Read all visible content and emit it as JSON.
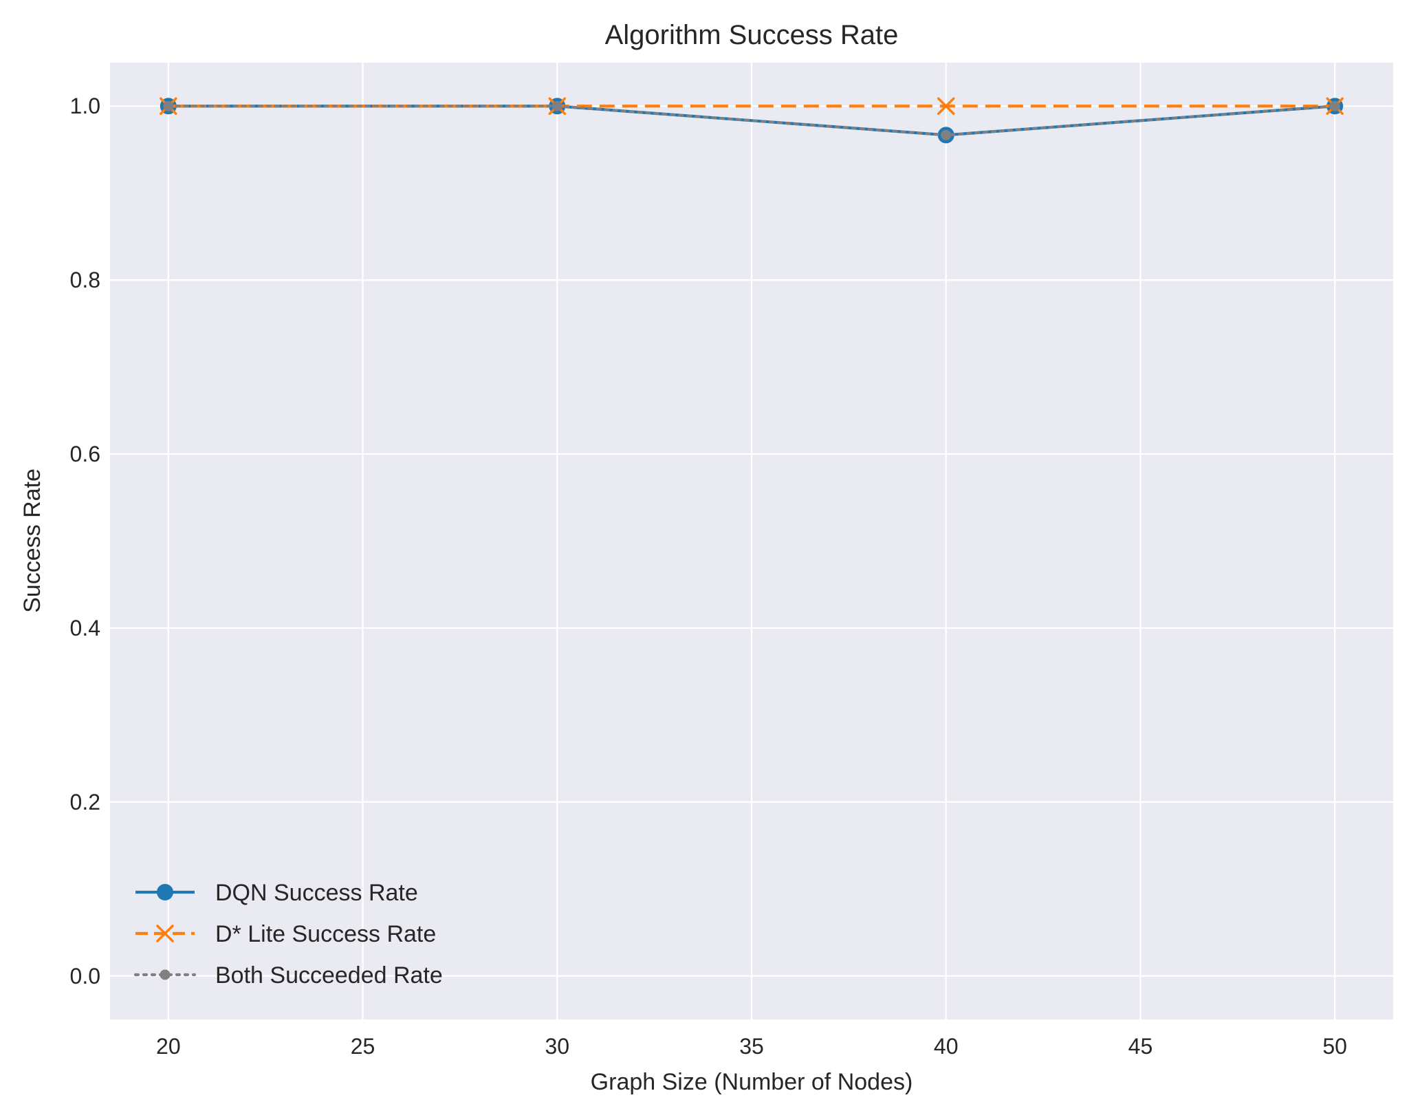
{
  "chart_data": {
    "type": "line",
    "title": "Algorithm Success Rate",
    "xlabel": "Graph Size (Number of Nodes)",
    "ylabel": "Success Rate",
    "x": [
      20,
      30,
      40,
      50
    ],
    "xlim": [
      18.5,
      51.5
    ],
    "ylim": [
      -0.05,
      1.05
    ],
    "xticks": [
      20,
      25,
      30,
      35,
      40,
      45,
      50
    ],
    "xtick_labels": [
      "20",
      "25",
      "30",
      "35",
      "40",
      "45",
      "50"
    ],
    "yticks": [
      0.0,
      0.2,
      0.4,
      0.6,
      0.8,
      1.0
    ],
    "ytick_labels": [
      "0.0",
      "0.2",
      "0.4",
      "0.6",
      "0.8",
      "1.0"
    ],
    "grid": true,
    "legend_position": "lower-left",
    "background_color": "#eaeaf2",
    "series": [
      {
        "name": "DQN Success Rate",
        "values": [
          1.0,
          1.0,
          0.9667,
          1.0
        ],
        "color": "#1f77b4",
        "line_style": "solid",
        "marker": "circle"
      },
      {
        "name": "D* Lite Success Rate",
        "values": [
          1.0,
          1.0,
          1.0,
          1.0
        ],
        "color": "#ff7f0e",
        "line_style": "dashed",
        "marker": "x"
      },
      {
        "name": "Both Succeeded Rate",
        "values": [
          1.0,
          1.0,
          0.9667,
          1.0
        ],
        "color": "#808080",
        "line_style": "dotted",
        "marker": "small-circle"
      }
    ]
  }
}
